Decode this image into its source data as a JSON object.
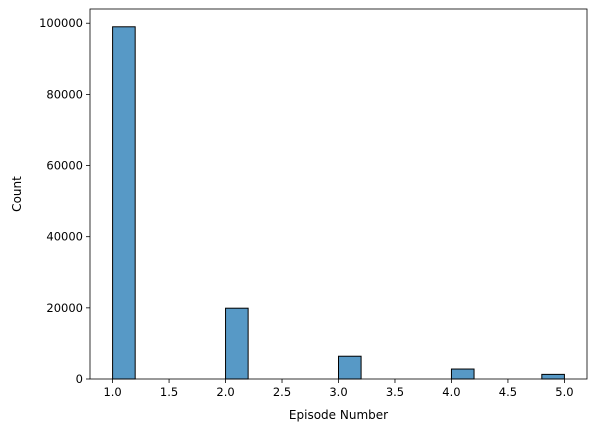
{
  "chart_data": {
    "type": "bar",
    "title": "",
    "xlabel": "Episode Number",
    "ylabel": "Count",
    "xlim": [
      0.8,
      5.2
    ],
    "ylim": [
      0,
      104000
    ],
    "bin_width": 0.2,
    "bins": [
      {
        "x_start": 1.0,
        "x_end": 1.2,
        "value": 99000
      },
      {
        "x_start": 1.2,
        "x_end": 1.4,
        "value": 0
      },
      {
        "x_start": 1.4,
        "x_end": 1.6,
        "value": 0
      },
      {
        "x_start": 1.6,
        "x_end": 1.8,
        "value": 0
      },
      {
        "x_start": 1.8,
        "x_end": 2.0,
        "value": 0
      },
      {
        "x_start": 2.0,
        "x_end": 2.2,
        "value": 19900
      },
      {
        "x_start": 2.2,
        "x_end": 2.4,
        "value": 0
      },
      {
        "x_start": 2.4,
        "x_end": 2.6,
        "value": 0
      },
      {
        "x_start": 2.6,
        "x_end": 2.8,
        "value": 0
      },
      {
        "x_start": 2.8,
        "x_end": 3.0,
        "value": 0
      },
      {
        "x_start": 3.0,
        "x_end": 3.2,
        "value": 6400
      },
      {
        "x_start": 3.2,
        "x_end": 3.4,
        "value": 0
      },
      {
        "x_start": 3.4,
        "x_end": 3.6,
        "value": 0
      },
      {
        "x_start": 3.6,
        "x_end": 3.8,
        "value": 0
      },
      {
        "x_start": 3.8,
        "x_end": 4.0,
        "value": 0
      },
      {
        "x_start": 4.0,
        "x_end": 4.2,
        "value": 2800
      },
      {
        "x_start": 4.2,
        "x_end": 4.4,
        "value": 0
      },
      {
        "x_start": 4.4,
        "x_end": 4.6,
        "value": 0
      },
      {
        "x_start": 4.6,
        "x_end": 4.8,
        "value": 0
      },
      {
        "x_start": 4.8,
        "x_end": 5.0,
        "value": 1300
      }
    ],
    "x_ticks": [
      1.0,
      1.5,
      2.0,
      2.5,
      3.0,
      3.5,
      4.0,
      4.5,
      5.0
    ],
    "x_tick_labels": [
      "1.0",
      "1.5",
      "2.0",
      "2.5",
      "3.0",
      "3.5",
      "4.0",
      "4.5",
      "5.0"
    ],
    "y_ticks": [
      0,
      20000,
      40000,
      60000,
      80000,
      100000
    ],
    "y_tick_labels": [
      "0",
      "20000",
      "40000",
      "60000",
      "80000",
      "100000"
    ],
    "grid": false,
    "legend": "none",
    "colors": {
      "bar_fill": "#5799c6",
      "bar_edge": "#000000",
      "axis": "#000000"
    }
  }
}
